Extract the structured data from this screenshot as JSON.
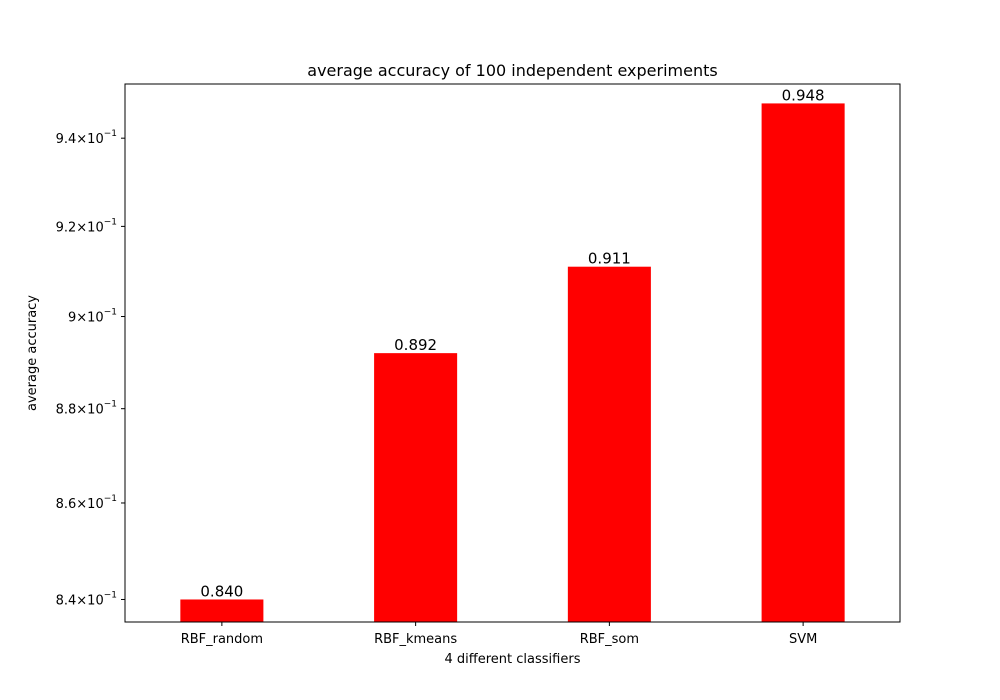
{
  "chart_data": {
    "type": "bar",
    "title": "average accuracy of 100 independent experiments",
    "xlabel": "4 different classifiers",
    "ylabel": "average accuracy",
    "categories": [
      "RBF_random",
      "RBF_kmeans",
      "RBF_som",
      "SVM"
    ],
    "values": [
      0.84,
      0.892,
      0.911,
      0.948
    ],
    "value_labels": [
      "0.840",
      "0.892",
      "0.911",
      "0.948"
    ],
    "y_scale": "log",
    "ylim": [
      0.8354,
      0.9525
    ],
    "y_ticks": [
      {
        "value": 0.84,
        "mantissa": "8.4",
        "base": "10",
        "exp": "−1"
      },
      {
        "value": 0.86,
        "mantissa": "8.6",
        "base": "10",
        "exp": "−1"
      },
      {
        "value": 0.88,
        "mantissa": "8.8",
        "base": "10",
        "exp": "−1"
      },
      {
        "value": 0.9,
        "mantissa": "9",
        "base": "10",
        "exp": "−1"
      },
      {
        "value": 0.92,
        "mantissa": "9.2",
        "base": "10",
        "exp": "−1"
      },
      {
        "value": 0.94,
        "mantissa": "9.4",
        "base": "10",
        "exp": "−1"
      }
    ],
    "bar_color": "#ff0000",
    "grid": false,
    "legend": "none"
  }
}
